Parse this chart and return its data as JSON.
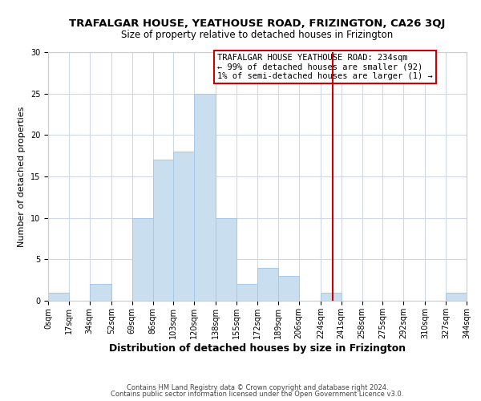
{
  "title": "TRAFALGAR HOUSE, YEATHOUSE ROAD, FRIZINGTON, CA26 3QJ",
  "subtitle": "Size of property relative to detached houses in Frizington",
  "xlabel": "Distribution of detached houses by size in Frizington",
  "ylabel": "Number of detached properties",
  "bar_counts": [
    1,
    0,
    2,
    0,
    10,
    17,
    18,
    25,
    10,
    2,
    4,
    3,
    0,
    1,
    0,
    0,
    0,
    0,
    0,
    1
  ],
  "bin_edges": [
    0,
    17,
    34,
    52,
    69,
    86,
    103,
    120,
    138,
    155,
    172,
    189,
    206,
    224,
    241,
    258,
    275,
    292,
    310,
    327,
    344
  ],
  "x_tick_labels": [
    "0sqm",
    "17sqm",
    "34sqm",
    "52sqm",
    "69sqm",
    "86sqm",
    "103sqm",
    "120sqm",
    "138sqm",
    "155sqm",
    "172sqm",
    "189sqm",
    "206sqm",
    "224sqm",
    "241sqm",
    "258sqm",
    "275sqm",
    "292sqm",
    "310sqm",
    "327sqm",
    "344sqm"
  ],
  "bar_color": "#c9dff0",
  "bar_edgecolor": "#a8c8e8",
  "ylim": [
    0,
    30
  ],
  "yticks": [
    0,
    5,
    10,
    15,
    20,
    25,
    30
  ],
  "red_line_x": 234,
  "annotation_title": "TRAFALGAR HOUSE YEATHOUSE ROAD: 234sqm",
  "annotation_line1": "← 99% of detached houses are smaller (92)",
  "annotation_line2": "1% of semi-detached houses are larger (1) →",
  "annotation_box_color": "#ffffff",
  "annotation_box_edgecolor": "#cc0000",
  "red_line_color": "#cc0000",
  "footer1": "Contains HM Land Registry data © Crown copyright and database right 2024.",
  "footer2": "Contains public sector information licensed under the Open Government Licence v3.0.",
  "background_color": "#ffffff",
  "grid_color": "#d0d8e8",
  "title_fontsize": 9.5,
  "subtitle_fontsize": 8.5,
  "xlabel_fontsize": 9,
  "ylabel_fontsize": 8,
  "tick_fontsize": 7,
  "annotation_fontsize": 7.5,
  "footer_fontsize": 6
}
